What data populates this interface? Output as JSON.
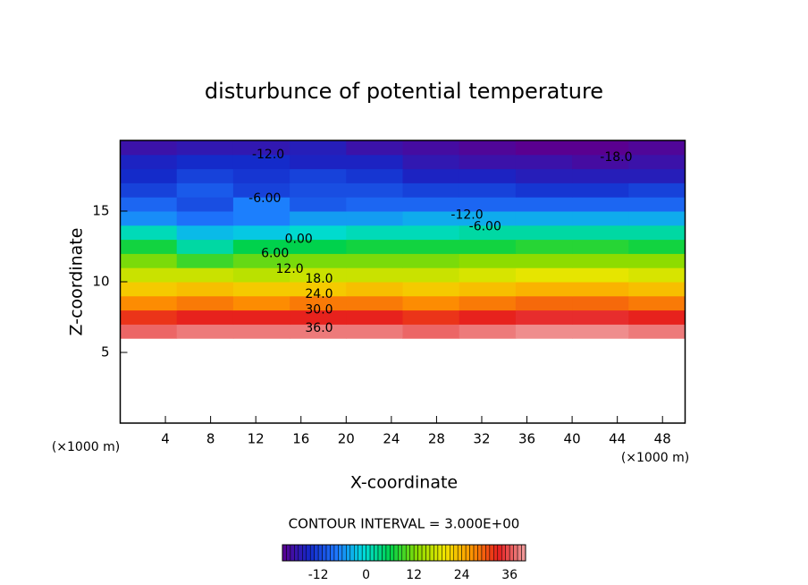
{
  "chart_data": {
    "type": "contour",
    "title": "disturbunce of potential temperature",
    "x_label": "X-coordinate",
    "y_label": "Z-coordinate",
    "x_unit_label": "(×1000 m)",
    "contour_interval_label": "CONTOUR INTERVAL = 3.000E+00",
    "xlim": [
      0,
      50
    ],
    "xticks": [
      4,
      8,
      12,
      16,
      20,
      24,
      28,
      32,
      36,
      40,
      44,
      48
    ],
    "ylim": [
      0,
      20
    ],
    "yticks": [
      5,
      10,
      15
    ],
    "x": [
      2.5,
      7.5,
      12.5,
      17.5,
      22.5,
      27.5,
      32.5,
      37.5,
      42.5,
      47.5
    ],
    "z": [
      6.5,
      7.5,
      8.5,
      9.5,
      10.5,
      11.5,
      12.5,
      13.5,
      14.5,
      15.5,
      16.5,
      17.5,
      18.5,
      19.5
    ],
    "field": [
      [
        37,
        38,
        38,
        38,
        38,
        37,
        38,
        39,
        39,
        38
      ],
      [
        32,
        33,
        33,
        33,
        33,
        32,
        33,
        34,
        34,
        33
      ],
      [
        27,
        28,
        27,
        28,
        28,
        27,
        28,
        29,
        29,
        28
      ],
      [
        22,
        23,
        22,
        22,
        23,
        22,
        23,
        24,
        24,
        23
      ],
      [
        17,
        17,
        16,
        17,
        17,
        17,
        18,
        19,
        19,
        18
      ],
      [
        12,
        9,
        11,
        12,
        12,
        12,
        13,
        13,
        13,
        13
      ],
      [
        7,
        2,
        6,
        6,
        7,
        7,
        7,
        8,
        8,
        7
      ],
      [
        1,
        -3,
        -2,
        0,
        1,
        1,
        2,
        2,
        2,
        2
      ],
      [
        -6,
        -8,
        -7,
        -5,
        -5,
        -4,
        -4,
        -4,
        -4,
        -4
      ],
      [
        -9,
        -11,
        -7,
        -10,
        -9,
        -9,
        -9,
        -9,
        -9,
        -9
      ],
      [
        -12,
        -10,
        -12,
        -11,
        -11,
        -12,
        -12,
        -13,
        -13,
        -12
      ],
      [
        -14,
        -12,
        -13,
        -12,
        -13,
        -15,
        -15,
        -16,
        -16,
        -16
      ],
      [
        -15,
        -14,
        -14,
        -15,
        -15,
        -17,
        -18,
        -18,
        -19,
        -18
      ],
      [
        -18,
        -17,
        -17,
        -16,
        -18,
        -19,
        -20,
        -21,
        -22,
        -20
      ]
    ],
    "contour_labels": [
      {
        "value": -12,
        "label": "-12.0",
        "x": 13.1,
        "z": 19.0
      },
      {
        "value": -6,
        "label": "-6.00",
        "x": 12.8,
        "z": 15.9
      },
      {
        "value": 0,
        "label": "0.00",
        "x": 15.8,
        "z": 13.0
      },
      {
        "value": 6,
        "label": "6.00",
        "x": 13.7,
        "z": 12.0
      },
      {
        "value": 12,
        "label": "12.0",
        "x": 15.0,
        "z": 10.9
      },
      {
        "value": 18,
        "label": "18.0",
        "x": 17.6,
        "z": 10.2
      },
      {
        "value": 24,
        "label": "24.0",
        "x": 17.6,
        "z": 9.1
      },
      {
        "value": 30,
        "label": "30.0",
        "x": 17.6,
        "z": 8.0
      },
      {
        "value": 36,
        "label": "36.0",
        "x": 17.6,
        "z": 6.7
      },
      {
        "value": -18,
        "label": "-18.0",
        "x": 43.9,
        "z": 18.8
      },
      {
        "value": -12,
        "label": "-12.0",
        "x": 30.7,
        "z": 14.7
      },
      {
        "value": -6,
        "label": "-6.00",
        "x": 32.3,
        "z": 13.9
      }
    ],
    "clim": [
      -21,
      40
    ],
    "cticks": [
      -12,
      0,
      12,
      24,
      36
    ],
    "colormap": [
      "#5a0090",
      "#1428c8",
      "#1e78ff",
      "#00dcdc",
      "#00d24a",
      "#8cdc00",
      "#f0e600",
      "#ff9600",
      "#e61e1e",
      "#f0a0a0"
    ]
  }
}
